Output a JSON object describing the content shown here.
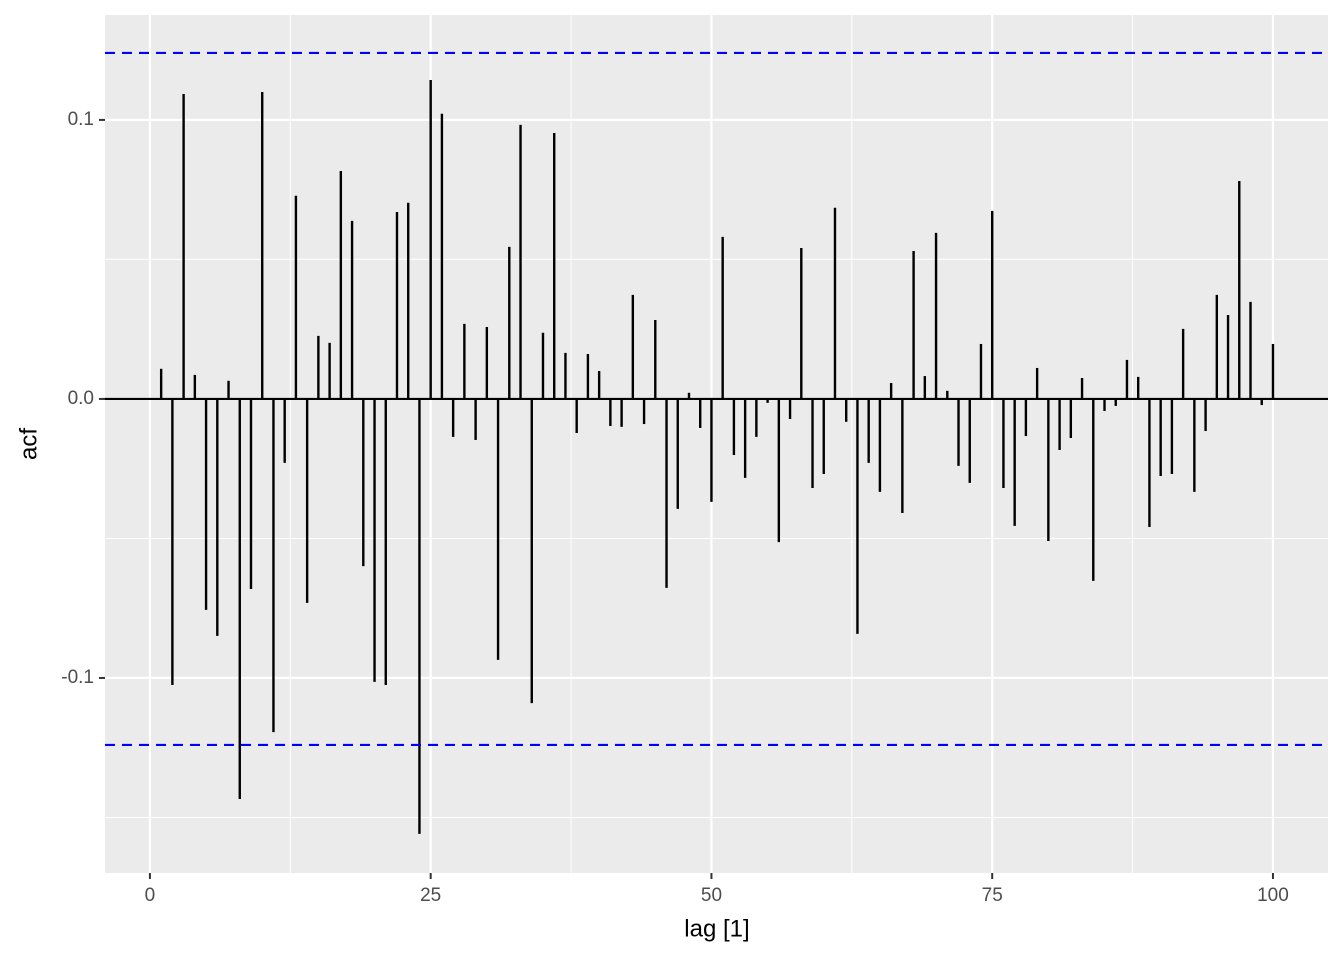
{
  "chart_data": {
    "type": "acf",
    "x_label": "lag [1]",
    "y_label": "acf",
    "x": [
      1,
      2,
      3,
      4,
      5,
      6,
      7,
      8,
      9,
      10,
      11,
      12,
      13,
      14,
      15,
      16,
      17,
      18,
      19,
      20,
      21,
      22,
      23,
      24,
      25,
      26,
      27,
      28,
      29,
      30,
      31,
      32,
      33,
      34,
      35,
      36,
      37,
      38,
      39,
      40,
      41,
      42,
      43,
      44,
      45,
      46,
      47,
      48,
      49,
      50,
      51,
      52,
      53,
      54,
      55,
      56,
      57,
      58,
      59,
      60,
      61,
      62,
      63,
      64,
      65,
      66,
      67,
      68,
      69,
      70,
      71,
      72,
      73,
      74,
      75,
      76,
      77,
      78,
      79,
      80,
      81,
      82,
      83,
      84,
      85,
      86,
      87,
      88,
      89,
      90,
      91,
      92,
      93,
      94,
      95,
      96,
      97,
      98,
      99,
      100
    ],
    "values": [
      0.0108,
      -0.1025,
      0.1093,
      0.0086,
      -0.0756,
      -0.0849,
      0.0065,
      -0.1434,
      -0.0681,
      0.11,
      -0.1194,
      -0.0229,
      0.0728,
      -0.0731,
      0.0226,
      0.0201,
      0.0817,
      0.0638,
      -0.0599,
      -0.1014,
      -0.1025,
      0.067,
      0.0703,
      -0.1559,
      0.1143,
      0.1022,
      -0.0136,
      0.0269,
      -0.0147,
      0.0258,
      -0.0935,
      0.0545,
      0.0982,
      -0.109,
      0.0237,
      0.0953,
      0.0165,
      -0.0122,
      0.0161,
      0.01,
      -0.0097,
      -0.01,
      0.0373,
      -0.009,
      0.0283,
      -0.0677,
      -0.0394,
      0.0022,
      -0.0104,
      -0.0369,
      0.0581,
      -0.0201,
      -0.0283,
      -0.0136,
      -0.0014,
      -0.0513,
      -0.0072,
      0.0541,
      -0.0319,
      -0.0269,
      0.0685,
      -0.0082,
      -0.0842,
      -0.0229,
      -0.0333,
      0.0057,
      -0.0409,
      0.053,
      0.0082,
      0.0595,
      0.0029,
      -0.024,
      -0.0301,
      0.0197,
      0.0674,
      -0.0319,
      -0.0455,
      -0.0133,
      0.0111,
      -0.0509,
      -0.0183,
      -0.014,
      0.0075,
      -0.0652,
      -0.0043,
      -0.0025,
      0.014,
      0.0079,
      -0.0459,
      -0.0276,
      -0.0269,
      0.0251,
      -0.0333,
      -0.0115,
      0.0373,
      0.0301,
      0.0781,
      0.0348,
      -0.0022,
      0.0197
    ],
    "color": "#000000",
    "ci_bounds": [
      -0.124,
      0.124
    ],
    "ci_color": "#0000ff",
    "xlim": [
      -4.0,
      104.9
    ],
    "ylim": [
      -0.1699,
      0.1376
    ],
    "xticks": [
      0,
      25,
      50,
      75,
      100
    ],
    "yticks": [
      -0.1,
      {
        "value": 0,
        "label": "0.0"
      },
      0.1
    ],
    "grid": true
  }
}
